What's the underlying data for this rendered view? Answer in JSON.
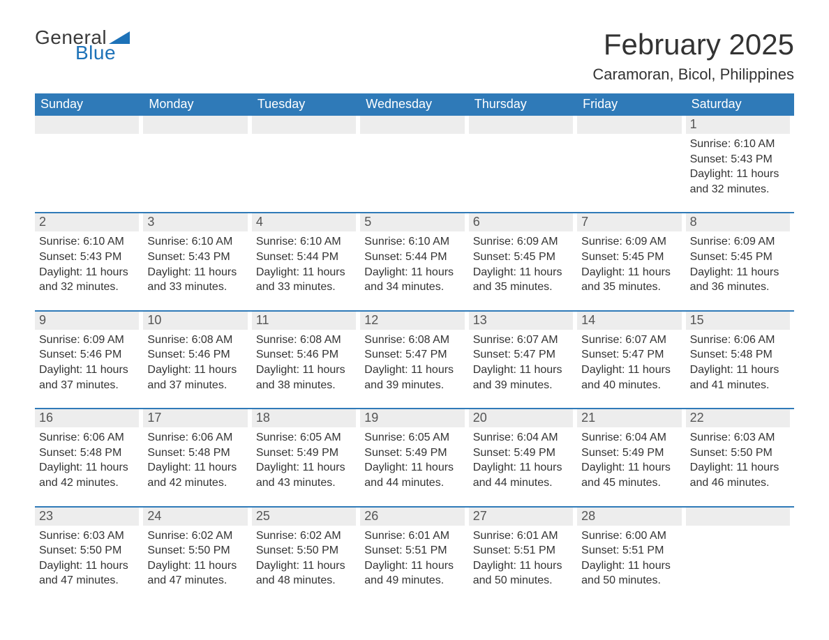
{
  "logo": {
    "text1": "General",
    "text2": "Blue",
    "tri_color": "#1d72b8"
  },
  "colors": {
    "header_bg": "#2f7ab8",
    "header_text": "#ffffff",
    "daynum_bg": "#ededed",
    "daynum_text": "#555555",
    "body_text": "#333333",
    "rule": "#2f7ab8",
    "page_bg": "#ffffff"
  },
  "typography": {
    "month_title_fontsize": 42,
    "location_fontsize": 22,
    "weekday_fontsize": 18,
    "daynum_fontsize": 18,
    "body_fontsize": 16
  },
  "header": {
    "month_title": "February 2025",
    "location": "Caramoran, Bicol, Philippines"
  },
  "weekdays": [
    "Sunday",
    "Monday",
    "Tuesday",
    "Wednesday",
    "Thursday",
    "Friday",
    "Saturday"
  ],
  "weeks": [
    [
      {
        "day": "",
        "sunrise": "",
        "sunset": "",
        "daylight": ""
      },
      {
        "day": "",
        "sunrise": "",
        "sunset": "",
        "daylight": ""
      },
      {
        "day": "",
        "sunrise": "",
        "sunset": "",
        "daylight": ""
      },
      {
        "day": "",
        "sunrise": "",
        "sunset": "",
        "daylight": ""
      },
      {
        "day": "",
        "sunrise": "",
        "sunset": "",
        "daylight": ""
      },
      {
        "day": "",
        "sunrise": "",
        "sunset": "",
        "daylight": ""
      },
      {
        "day": "1",
        "sunrise": "Sunrise: 6:10 AM",
        "sunset": "Sunset: 5:43 PM",
        "daylight": "Daylight: 11 hours and 32 minutes."
      }
    ],
    [
      {
        "day": "2",
        "sunrise": "Sunrise: 6:10 AM",
        "sunset": "Sunset: 5:43 PM",
        "daylight": "Daylight: 11 hours and 32 minutes."
      },
      {
        "day": "3",
        "sunrise": "Sunrise: 6:10 AM",
        "sunset": "Sunset: 5:43 PM",
        "daylight": "Daylight: 11 hours and 33 minutes."
      },
      {
        "day": "4",
        "sunrise": "Sunrise: 6:10 AM",
        "sunset": "Sunset: 5:44 PM",
        "daylight": "Daylight: 11 hours and 33 minutes."
      },
      {
        "day": "5",
        "sunrise": "Sunrise: 6:10 AM",
        "sunset": "Sunset: 5:44 PM",
        "daylight": "Daylight: 11 hours and 34 minutes."
      },
      {
        "day": "6",
        "sunrise": "Sunrise: 6:09 AM",
        "sunset": "Sunset: 5:45 PM",
        "daylight": "Daylight: 11 hours and 35 minutes."
      },
      {
        "day": "7",
        "sunrise": "Sunrise: 6:09 AM",
        "sunset": "Sunset: 5:45 PM",
        "daylight": "Daylight: 11 hours and 35 minutes."
      },
      {
        "day": "8",
        "sunrise": "Sunrise: 6:09 AM",
        "sunset": "Sunset: 5:45 PM",
        "daylight": "Daylight: 11 hours and 36 minutes."
      }
    ],
    [
      {
        "day": "9",
        "sunrise": "Sunrise: 6:09 AM",
        "sunset": "Sunset: 5:46 PM",
        "daylight": "Daylight: 11 hours and 37 minutes."
      },
      {
        "day": "10",
        "sunrise": "Sunrise: 6:08 AM",
        "sunset": "Sunset: 5:46 PM",
        "daylight": "Daylight: 11 hours and 37 minutes."
      },
      {
        "day": "11",
        "sunrise": "Sunrise: 6:08 AM",
        "sunset": "Sunset: 5:46 PM",
        "daylight": "Daylight: 11 hours and 38 minutes."
      },
      {
        "day": "12",
        "sunrise": "Sunrise: 6:08 AM",
        "sunset": "Sunset: 5:47 PM",
        "daylight": "Daylight: 11 hours and 39 minutes."
      },
      {
        "day": "13",
        "sunrise": "Sunrise: 6:07 AM",
        "sunset": "Sunset: 5:47 PM",
        "daylight": "Daylight: 11 hours and 39 minutes."
      },
      {
        "day": "14",
        "sunrise": "Sunrise: 6:07 AM",
        "sunset": "Sunset: 5:47 PM",
        "daylight": "Daylight: 11 hours and 40 minutes."
      },
      {
        "day": "15",
        "sunrise": "Sunrise: 6:06 AM",
        "sunset": "Sunset: 5:48 PM",
        "daylight": "Daylight: 11 hours and 41 minutes."
      }
    ],
    [
      {
        "day": "16",
        "sunrise": "Sunrise: 6:06 AM",
        "sunset": "Sunset: 5:48 PM",
        "daylight": "Daylight: 11 hours and 42 minutes."
      },
      {
        "day": "17",
        "sunrise": "Sunrise: 6:06 AM",
        "sunset": "Sunset: 5:48 PM",
        "daylight": "Daylight: 11 hours and 42 minutes."
      },
      {
        "day": "18",
        "sunrise": "Sunrise: 6:05 AM",
        "sunset": "Sunset: 5:49 PM",
        "daylight": "Daylight: 11 hours and 43 minutes."
      },
      {
        "day": "19",
        "sunrise": "Sunrise: 6:05 AM",
        "sunset": "Sunset: 5:49 PM",
        "daylight": "Daylight: 11 hours and 44 minutes."
      },
      {
        "day": "20",
        "sunrise": "Sunrise: 6:04 AM",
        "sunset": "Sunset: 5:49 PM",
        "daylight": "Daylight: 11 hours and 44 minutes."
      },
      {
        "day": "21",
        "sunrise": "Sunrise: 6:04 AM",
        "sunset": "Sunset: 5:49 PM",
        "daylight": "Daylight: 11 hours and 45 minutes."
      },
      {
        "day": "22",
        "sunrise": "Sunrise: 6:03 AM",
        "sunset": "Sunset: 5:50 PM",
        "daylight": "Daylight: 11 hours and 46 minutes."
      }
    ],
    [
      {
        "day": "23",
        "sunrise": "Sunrise: 6:03 AM",
        "sunset": "Sunset: 5:50 PM",
        "daylight": "Daylight: 11 hours and 47 minutes."
      },
      {
        "day": "24",
        "sunrise": "Sunrise: 6:02 AM",
        "sunset": "Sunset: 5:50 PM",
        "daylight": "Daylight: 11 hours and 47 minutes."
      },
      {
        "day": "25",
        "sunrise": "Sunrise: 6:02 AM",
        "sunset": "Sunset: 5:50 PM",
        "daylight": "Daylight: 11 hours and 48 minutes."
      },
      {
        "day": "26",
        "sunrise": "Sunrise: 6:01 AM",
        "sunset": "Sunset: 5:51 PM",
        "daylight": "Daylight: 11 hours and 49 minutes."
      },
      {
        "day": "27",
        "sunrise": "Sunrise: 6:01 AM",
        "sunset": "Sunset: 5:51 PM",
        "daylight": "Daylight: 11 hours and 50 minutes."
      },
      {
        "day": "28",
        "sunrise": "Sunrise: 6:00 AM",
        "sunset": "Sunset: 5:51 PM",
        "daylight": "Daylight: 11 hours and 50 minutes."
      },
      {
        "day": "",
        "sunrise": "",
        "sunset": "",
        "daylight": ""
      }
    ]
  ]
}
